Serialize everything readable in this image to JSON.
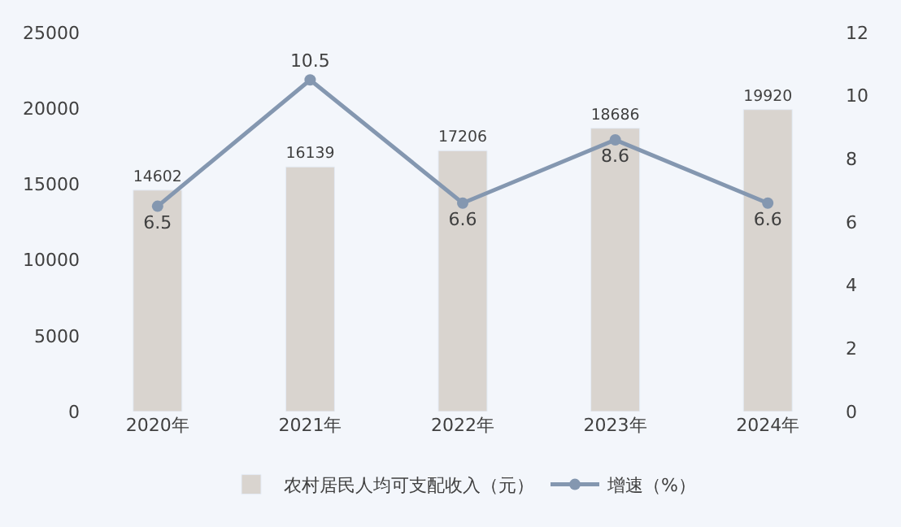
{
  "chart_data": {
    "type": "bar",
    "categories": [
      "2020年",
      "2021年",
      "2022年",
      "2023年",
      "2024年"
    ],
    "series": [
      {
        "name": "农村居民人均可支配收入（元）",
        "color": "#d9d4cf",
        "values": [
          14602,
          16139,
          17206,
          18686,
          19920
        ]
      },
      {
        "name": "增速（%）",
        "type": "line",
        "axis": "y2",
        "color": "#8497b0",
        "values": [
          6.5,
          10.5,
          6.6,
          8.6,
          6.6
        ]
      }
    ],
    "ylim": [
      0,
      25000
    ],
    "yticks": [
      0,
      5000,
      10000,
      15000,
      20000,
      25000
    ],
    "y2lim": [
      0,
      12
    ],
    "y2ticks": [
      0,
      2,
      4,
      6,
      8,
      10,
      12
    ],
    "data_labels": true,
    "legend": "bottom",
    "grid": false,
    "marker": "circle",
    "line_style": "solid"
  }
}
